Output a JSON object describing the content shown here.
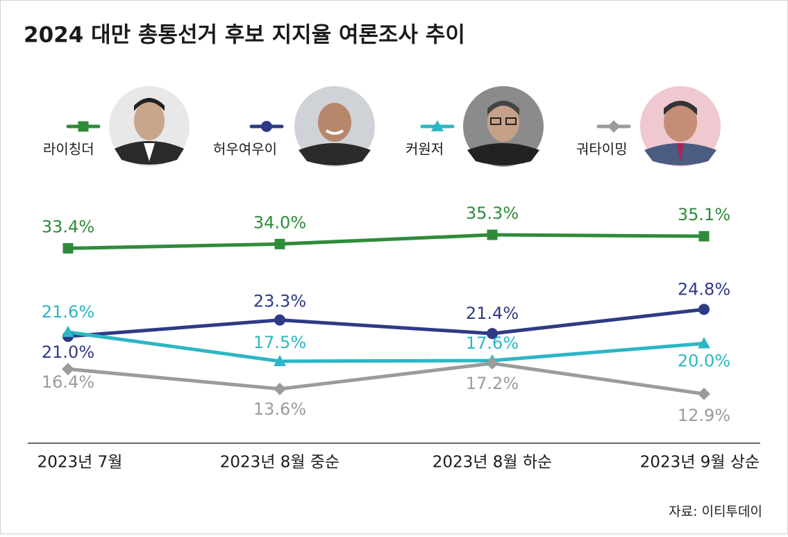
{
  "chart_data": {
    "type": "line",
    "title": "2024 대만 총통선거 후보 지지율 여론조사 추이",
    "categories": [
      "2023년 7월",
      "2023년 8월 중순",
      "2023년 8월 하순",
      "2023년 9월 상순"
    ],
    "series": [
      {
        "name": "라이칭더",
        "color": "#2e8b3a",
        "values": [
          33.4,
          34.0,
          35.3,
          35.1
        ],
        "value_labels": [
          "33.4%",
          "34.0%",
          "35.3%",
          "35.1%"
        ]
      },
      {
        "name": "허우여우이",
        "color": "#2f3a86",
        "values": [
          21.0,
          23.3,
          21.4,
          24.8
        ],
        "value_labels": [
          "21.0%",
          "23.3%",
          "21.4%",
          "24.8%"
        ]
      },
      {
        "name": "커원저",
        "color": "#2bb7c3",
        "values": [
          21.6,
          17.5,
          17.6,
          20.0
        ],
        "value_labels": [
          "21.6%",
          "17.5%",
          "17.6%",
          "20.0%"
        ]
      },
      {
        "name": "궈타이밍",
        "color": "#9b9b9b",
        "values": [
          16.4,
          13.6,
          17.2,
          12.9
        ],
        "value_labels": [
          "16.4%",
          "13.6%",
          "17.2%",
          "12.9%"
        ]
      }
    ],
    "source": "자료: 이티투데이"
  }
}
